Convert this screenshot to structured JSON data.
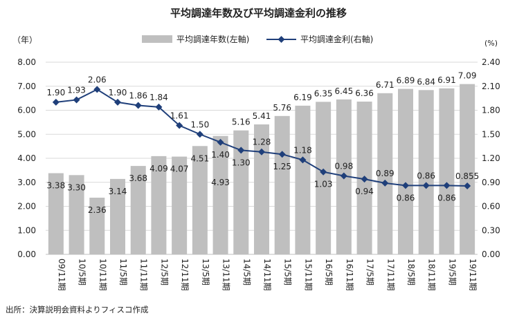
{
  "chart_data": {
    "type": "bar+line",
    "title": "平均調達年数及び平均調達金利の推移",
    "left_axis_unit": "（年）",
    "right_axis_unit": "(%)",
    "categories": [
      "09/11期",
      "10/5期",
      "10/11期",
      "11/5期",
      "11/11期",
      "12/5期",
      "12/11期",
      "13/5期",
      "13/11期",
      "14/5期",
      "14/11期",
      "15/5期",
      "15/11期",
      "16/5期",
      "16/11期",
      "17/5期",
      "17/11期",
      "18/5期",
      "18/11期",
      "19/5期",
      "19/11期"
    ],
    "series": [
      {
        "name": "平均調達年数(左軸)",
        "type": "bar",
        "axis": "left",
        "color": "#bfbfbf",
        "values": [
          3.38,
          3.3,
          2.36,
          3.14,
          3.68,
          4.09,
          4.07,
          4.51,
          4.93,
          5.16,
          5.41,
          5.76,
          6.19,
          6.35,
          6.45,
          6.36,
          6.71,
          6.89,
          6.84,
          6.91,
          7.09
        ],
        "labels": [
          "3.38",
          "3.30",
          "2.36",
          "3.14",
          "3.68",
          "4.09",
          "4.07",
          "4.51",
          "4.93",
          "5.16",
          "5.41",
          "5.76",
          "6.19",
          "6.35",
          "6.45",
          "6.36",
          "6.71",
          "6.89",
          "6.84",
          "6.91",
          "7.09"
        ]
      },
      {
        "name": "平均調達金利(右軸)",
        "type": "line",
        "axis": "right",
        "color": "#1f3f7a",
        "values": [
          1.9,
          1.93,
          2.06,
          1.9,
          1.86,
          1.84,
          1.61,
          1.5,
          1.4,
          1.3,
          1.28,
          1.25,
          1.18,
          1.03,
          0.98,
          0.94,
          0.89,
          0.86,
          0.86,
          0.86,
          0.855
        ],
        "labels": [
          "1.90",
          "1.93",
          "2.06",
          "1.90",
          "1.86",
          "1.84",
          "1.61",
          "1.50",
          "1.40",
          "1.30",
          "1.28",
          "1.25",
          "1.18",
          "1.03",
          "0.98",
          "0.94",
          "0.89",
          "0.86",
          "0.86",
          "0.86",
          "0.855"
        ]
      }
    ],
    "left_ylim": [
      0,
      8
    ],
    "left_ticks": [
      "0.00",
      "1.00",
      "2.00",
      "3.00",
      "4.00",
      "5.00",
      "6.00",
      "7.00",
      "8.00"
    ],
    "right_ylim": [
      0,
      2.4
    ],
    "right_ticks": [
      "0.00",
      "0.30",
      "0.60",
      "0.90",
      "1.20",
      "1.50",
      "1.80",
      "2.10",
      "2.40"
    ],
    "grid": true,
    "legend_position": "top"
  },
  "source": "出所：決算説明会資料よりフィスコ作成"
}
